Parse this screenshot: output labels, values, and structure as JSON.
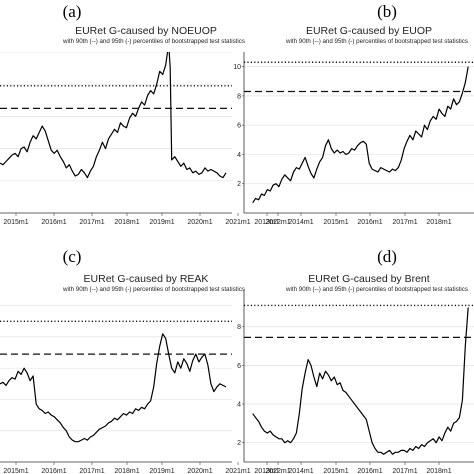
{
  "chart_data": [
    {
      "panel": "(a)",
      "type": "line",
      "title": "EURet G-caused by NOEUOP",
      "subtitle": "with 90th (--) and 95th (-) percentiles of bootstrapped test statistics",
      "x_ticks": [
        "2015m1",
        "2016m1",
        "2017m1",
        "2018m1",
        "2019m1",
        "2020m1",
        "2021m1",
        "2022m1"
      ],
      "y_ticks": [],
      "xlim": [
        2014.8,
        2022.5
      ],
      "ylim": [
        0,
        10
      ],
      "percentile_90": 6.5,
      "percentile_95": 7.9,
      "x": [
        2014.8,
        2014.9,
        2015.0,
        2015.1,
        2015.2,
        2015.3,
        2015.4,
        2015.5,
        2015.6,
        2015.7,
        2015.8,
        2015.9,
        2016.0,
        2016.1,
        2016.2,
        2016.3,
        2016.4,
        2016.5,
        2016.6,
        2016.7,
        2016.8,
        2016.9,
        2017.0,
        2017.1,
        2017.2,
        2017.3,
        2017.4,
        2017.5,
        2017.6,
        2017.7,
        2017.8,
        2017.9,
        2018.0,
        2018.1,
        2018.2,
        2018.3,
        2018.4,
        2018.5,
        2018.6,
        2018.7,
        2018.8,
        2018.9,
        2019.0,
        2019.1,
        2019.2,
        2019.3,
        2019.4,
        2019.5,
        2019.6,
        2019.7,
        2019.8,
        2019.9,
        2020.0,
        2020.1,
        2020.2,
        2020.3,
        2020.4,
        2020.45,
        2020.5,
        2020.6,
        2020.7,
        2020.8,
        2020.9,
        2021.0,
        2021.1,
        2021.2,
        2021.3,
        2021.4,
        2021.5,
        2021.6,
        2021.7,
        2021.8,
        2021.9,
        2022.0,
        2022.1,
        2022.2,
        2022.3
      ],
      "values": [
        3.1,
        3.0,
        3.2,
        3.4,
        3.6,
        3.7,
        3.5,
        4.0,
        4.1,
        3.8,
        4.4,
        4.8,
        4.6,
        5.0,
        5.4,
        5.1,
        4.5,
        3.9,
        3.7,
        3.9,
        3.5,
        3.2,
        2.8,
        3.0,
        2.6,
        2.3,
        2.4,
        2.7,
        2.5,
        2.2,
        2.6,
        2.9,
        3.5,
        3.9,
        4.4,
        4.0,
        4.6,
        4.9,
        5.2,
        5.0,
        5.6,
        5.4,
        5.3,
        5.9,
        6.2,
        6.0,
        6.5,
        6.9,
        6.7,
        7.3,
        7.6,
        7.4,
        8.0,
        8.8,
        8.6,
        9.2,
        10.5,
        9.0,
        3.3,
        3.5,
        3.2,
        2.9,
        3.1,
        2.7,
        2.8,
        2.5,
        2.6,
        2.4,
        2.5,
        2.8,
        2.6,
        2.7,
        2.6,
        2.5,
        2.3,
        2.2,
        2.5
      ]
    },
    {
      "panel": "(b)",
      "type": "line",
      "title": "EURet G-caused by EUOP",
      "subtitle": "with 90th (--) and 95th (-) percentiles of bootstrapped test statistics",
      "x_ticks": [
        "2013m1",
        "2014m1",
        "2015m1",
        "2016m1",
        "2017m1",
        "2018m1",
        "2019m1",
        "2020m1"
      ],
      "y_ticks": [
        "2",
        "4",
        "6",
        "8",
        "10"
      ],
      "xlim": [
        2012.7,
        2020.6
      ],
      "ylim": [
        0,
        11
      ],
      "percentile_90": 8.3,
      "percentile_95": 10.3,
      "x": [
        2013.0,
        2013.1,
        2013.2,
        2013.3,
        2013.4,
        2013.5,
        2013.6,
        2013.7,
        2013.8,
        2013.9,
        2014.0,
        2014.1,
        2014.2,
        2014.3,
        2014.4,
        2014.5,
        2014.6,
        2014.7,
        2014.8,
        2014.9,
        2015.0,
        2015.1,
        2015.2,
        2015.3,
        2015.4,
        2015.5,
        2015.6,
        2015.7,
        2015.8,
        2015.9,
        2016.0,
        2016.1,
        2016.2,
        2016.3,
        2016.4,
        2016.5,
        2016.6,
        2016.7,
        2016.8,
        2016.9,
        2017.0,
        2017.1,
        2017.2,
        2017.3,
        2017.4,
        2017.5,
        2017.6,
        2017.7,
        2017.8,
        2017.9,
        2018.0,
        2018.1,
        2018.2,
        2018.3,
        2018.4,
        2018.5,
        2018.6,
        2018.7,
        2018.8,
        2018.9,
        2019.0,
        2019.1,
        2019.2,
        2019.3,
        2019.4,
        2019.5,
        2019.6,
        2019.7,
        2019.8,
        2019.9,
        2020.0,
        2020.1,
        2020.2,
        2020.3,
        2020.4
      ],
      "values": [
        0.7,
        1.0,
        0.9,
        1.3,
        1.2,
        1.6,
        1.5,
        1.9,
        2.0,
        1.8,
        2.3,
        2.6,
        2.4,
        2.2,
        2.8,
        3.1,
        3.0,
        3.4,
        3.8,
        3.2,
        2.7,
        2.4,
        3.0,
        3.5,
        3.8,
        4.6,
        5.0,
        4.4,
        4.1,
        4.3,
        4.1,
        4.2,
        4.0,
        4.1,
        4.4,
        4.3,
        4.6,
        4.8,
        4.9,
        4.7,
        3.4,
        3.0,
        2.9,
        2.8,
        3.1,
        3.0,
        2.9,
        2.8,
        3.0,
        2.9,
        3.1,
        3.6,
        4.4,
        4.9,
        5.3,
        5.0,
        5.6,
        5.4,
        5.2,
        6.0,
        5.7,
        6.3,
        6.6,
        6.4,
        7.1,
        6.8,
        6.6,
        7.3,
        7.1,
        7.8,
        7.4,
        7.6,
        8.2,
        8.9,
        10.0
      ]
    },
    {
      "panel": "(c)",
      "type": "line",
      "title": "EURet G-caused by REAK",
      "subtitle": "with 90th (--) and 95th (-) percentiles of bootstrapped test statistics",
      "x_ticks": [
        "2015m1",
        "2016m1",
        "2017m1",
        "2018m1",
        "2019m1",
        "2020m1",
        "2021m1",
        "2022m1"
      ],
      "y_ticks": [],
      "xlim": [
        2014.8,
        2022.5
      ],
      "ylim": [
        0,
        11
      ],
      "percentile_90": 6.9,
      "percentile_95": 9.0,
      "x": [
        2014.8,
        2014.9,
        2015.0,
        2015.1,
        2015.2,
        2015.3,
        2015.4,
        2015.5,
        2015.6,
        2015.7,
        2015.8,
        2015.9,
        2016.0,
        2016.1,
        2016.2,
        2016.3,
        2016.4,
        2016.5,
        2016.6,
        2016.7,
        2016.8,
        2016.9,
        2017.0,
        2017.1,
        2017.2,
        2017.3,
        2017.4,
        2017.5,
        2017.6,
        2017.7,
        2017.8,
        2017.9,
        2018.0,
        2018.1,
        2018.2,
        2018.3,
        2018.4,
        2018.5,
        2018.6,
        2018.7,
        2018.8,
        2018.9,
        2019.0,
        2019.1,
        2019.2,
        2019.3,
        2019.4,
        2019.5,
        2019.6,
        2019.7,
        2019.8,
        2019.9,
        2020.0,
        2020.1,
        2020.2,
        2020.3,
        2020.4,
        2020.5,
        2020.6,
        2020.7,
        2020.8,
        2020.9,
        2021.0,
        2021.1,
        2021.2,
        2021.3,
        2021.4,
        2021.5,
        2021.6,
        2021.7,
        2021.8,
        2021.9,
        2022.0,
        2022.1,
        2022.2,
        2022.3
      ],
      "values": [
        5.0,
        5.1,
        4.9,
        5.2,
        5.4,
        5.3,
        5.8,
        5.6,
        6.0,
        5.7,
        5.2,
        5.5,
        3.7,
        3.4,
        3.3,
        3.1,
        3.2,
        3.0,
        2.9,
        2.7,
        2.5,
        2.2,
        2.0,
        1.6,
        1.4,
        1.3,
        1.3,
        1.4,
        1.5,
        1.4,
        1.6,
        1.7,
        1.9,
        2.1,
        2.2,
        2.3,
        2.5,
        2.6,
        2.8,
        2.7,
        2.9,
        3.1,
        3.0,
        3.2,
        3.1,
        3.4,
        3.3,
        3.5,
        3.4,
        3.7,
        3.9,
        4.8,
        6.3,
        7.4,
        8.2,
        7.9,
        6.9,
        6.0,
        5.7,
        6.4,
        6.0,
        6.6,
        6.3,
        5.8,
        6.5,
        6.9,
        6.4,
        6.7,
        6.9,
        6.2,
        5.0,
        4.5,
        4.8,
        5.0,
        4.9,
        4.8
      ]
    },
    {
      "panel": "(d)",
      "type": "line",
      "title": "EURet G-caused by Brent",
      "subtitle": "with 90th (--) and 95th (-) percentiles of bootstrapped test statistics",
      "x_ticks": [
        "2013m1",
        "2014m1",
        "2015m1",
        "2016m1",
        "2017m1",
        "2018m1",
        "2019m1",
        "2020m1"
      ],
      "y_ticks": [
        "2",
        "4",
        "6",
        "8"
      ],
      "xlim": [
        2012.7,
        2020.6
      ],
      "ylim": [
        1,
        9.9
      ],
      "percentile_90": 7.45,
      "percentile_95": 9.1,
      "x": [
        2013.0,
        2013.1,
        2013.2,
        2013.3,
        2013.4,
        2013.5,
        2013.6,
        2013.7,
        2013.8,
        2013.9,
        2014.0,
        2014.1,
        2014.2,
        2014.3,
        2014.4,
        2014.5,
        2014.6,
        2014.7,
        2014.8,
        2014.9,
        2015.0,
        2015.1,
        2015.2,
        2015.3,
        2015.4,
        2015.5,
        2015.6,
        2015.7,
        2015.8,
        2015.9,
        2016.0,
        2016.1,
        2016.2,
        2016.3,
        2016.4,
        2016.5,
        2016.6,
        2016.7,
        2016.8,
        2016.9,
        2017.0,
        2017.1,
        2017.2,
        2017.3,
        2017.4,
        2017.5,
        2017.6,
        2017.7,
        2017.8,
        2017.9,
        2018.0,
        2018.1,
        2018.2,
        2018.3,
        2018.4,
        2018.5,
        2018.6,
        2018.7,
        2018.8,
        2018.9,
        2019.0,
        2019.1,
        2019.2,
        2019.3,
        2019.4,
        2019.5,
        2019.6,
        2019.7,
        2019.8,
        2019.9,
        2020.0,
        2020.1,
        2020.2,
        2020.3,
        2020.4
      ],
      "values": [
        3.5,
        3.3,
        3.1,
        2.8,
        2.6,
        2.5,
        2.6,
        2.4,
        2.3,
        2.2,
        2.2,
        2.0,
        2.1,
        2.0,
        2.2,
        2.5,
        3.5,
        4.8,
        5.6,
        6.3,
        6.0,
        5.4,
        4.9,
        5.6,
        5.3,
        5.7,
        5.5,
        5.2,
        5.4,
        5.0,
        5.1,
        4.7,
        4.6,
        4.4,
        4.2,
        4.0,
        3.8,
        3.6,
        3.4,
        3.2,
        2.6,
        2.0,
        1.7,
        1.5,
        1.5,
        1.4,
        1.5,
        1.6,
        1.4,
        1.5,
        1.5,
        1.6,
        1.6,
        1.5,
        1.7,
        1.6,
        1.8,
        1.7,
        1.9,
        1.8,
        2.0,
        2.1,
        2.2,
        2.0,
        2.3,
        2.1,
        2.5,
        2.8,
        2.6,
        3.0,
        3.1,
        3.3,
        4.2,
        7.0,
        9.0
      ]
    }
  ]
}
